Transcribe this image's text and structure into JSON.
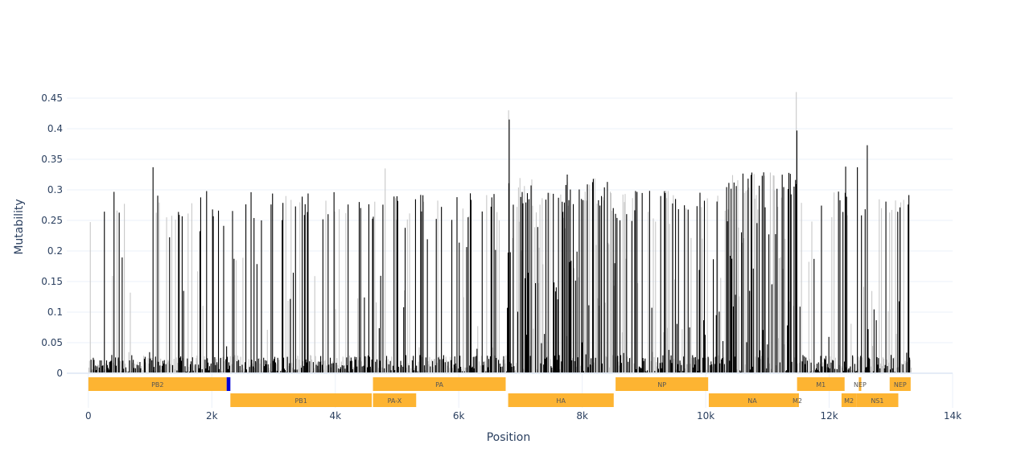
{
  "chart_data": {
    "type": "bar",
    "xlabel": "Position",
    "ylabel": "Mutability",
    "xlim": [
      -350,
      14000
    ],
    "ylim": [
      0,
      0.45
    ],
    "x_ticks": [
      {
        "value": 0,
        "label": "0"
      },
      {
        "value": 2000,
        "label": "2k"
      },
      {
        "value": 4000,
        "label": "4k"
      },
      {
        "value": 6000,
        "label": "6k"
      },
      {
        "value": 8000,
        "label": "8k"
      },
      {
        "value": 10000,
        "label": "10k"
      },
      {
        "value": 12000,
        "label": "12k"
      },
      {
        "value": 14000,
        "label": "14k"
      }
    ],
    "y_ticks": [
      {
        "value": 0,
        "label": "0"
      },
      {
        "value": 0.05,
        "label": "0.05"
      },
      {
        "value": 0.1,
        "label": "0.1"
      },
      {
        "value": 0.15,
        "label": "0.15"
      },
      {
        "value": 0.2,
        "label": "0.2"
      },
      {
        "value": 0.25,
        "label": "0.25"
      },
      {
        "value": 0.3,
        "label": "0.3"
      },
      {
        "value": 0.35,
        "label": "0.35"
      },
      {
        "value": 0.4,
        "label": "0.4"
      },
      {
        "value": 0.45,
        "label": "0.45"
      }
    ],
    "grid": true,
    "series_colors": {
      "primary": "#000000",
      "secondary": "#c8c8c8"
    },
    "peaks": [
      {
        "x": 6800,
        "y": 0.43,
        "color": "secondary"
      },
      {
        "x": 6810,
        "y": 0.415,
        "color": "primary"
      },
      {
        "x": 11460,
        "y": 0.46,
        "color": "secondary"
      },
      {
        "x": 11470,
        "y": 0.397,
        "color": "primary"
      },
      {
        "x": 12610,
        "y": 0.373,
        "color": "primary"
      },
      {
        "x": 1040,
        "y": 0.337,
        "color": "primary"
      },
      {
        "x": 12450,
        "y": 0.337,
        "color": "primary"
      },
      {
        "x": 12260,
        "y": 0.338,
        "color": "primary"
      },
      {
        "x": 4800,
        "y": 0.335,
        "color": "secondary"
      },
      {
        "x": 7750,
        "y": 0.325,
        "color": "primary"
      }
    ],
    "genes": [
      {
        "name": "PB2",
        "start": 0,
        "end": 2240,
        "row": 0,
        "color": "#fdb432"
      },
      {
        "name": "",
        "start": 2240,
        "end": 2300,
        "row": 0,
        "color": "#0000d8"
      },
      {
        "name": "PA",
        "start": 4610,
        "end": 6760,
        "row": 0,
        "color": "#fdb432"
      },
      {
        "name": "NP",
        "start": 8540,
        "end": 10040,
        "row": 0,
        "color": "#fdb432"
      },
      {
        "name": "M1",
        "start": 11480,
        "end": 12250,
        "row": 0,
        "color": "#fdb432"
      },
      {
        "name": "NEP",
        "start": 12480,
        "end": 12520,
        "row": 0,
        "color": "#fdb432"
      },
      {
        "name": "NEP",
        "start": 12980,
        "end": 13320,
        "row": 0,
        "color": "#fdb432"
      },
      {
        "name": "PB1",
        "start": 2300,
        "end": 4590,
        "row": 1,
        "color": "#fdb432"
      },
      {
        "name": "PA-X",
        "start": 4610,
        "end": 5310,
        "row": 1,
        "color": "#fdb432"
      },
      {
        "name": "HA",
        "start": 6800,
        "end": 8510,
        "row": 1,
        "color": "#fdb432"
      },
      {
        "name": "NA",
        "start": 10050,
        "end": 11460,
        "row": 1,
        "color": "#fdb432"
      },
      {
        "name": "M2",
        "start": 11460,
        "end": 11510,
        "row": 1,
        "color": "#fdb432"
      },
      {
        "name": "M2",
        "start": 12200,
        "end": 12440,
        "row": 1,
        "color": "#fdb432"
      },
      {
        "name": "NS1",
        "start": 12440,
        "end": 13120,
        "row": 1,
        "color": "#fdb432"
      }
    ]
  }
}
